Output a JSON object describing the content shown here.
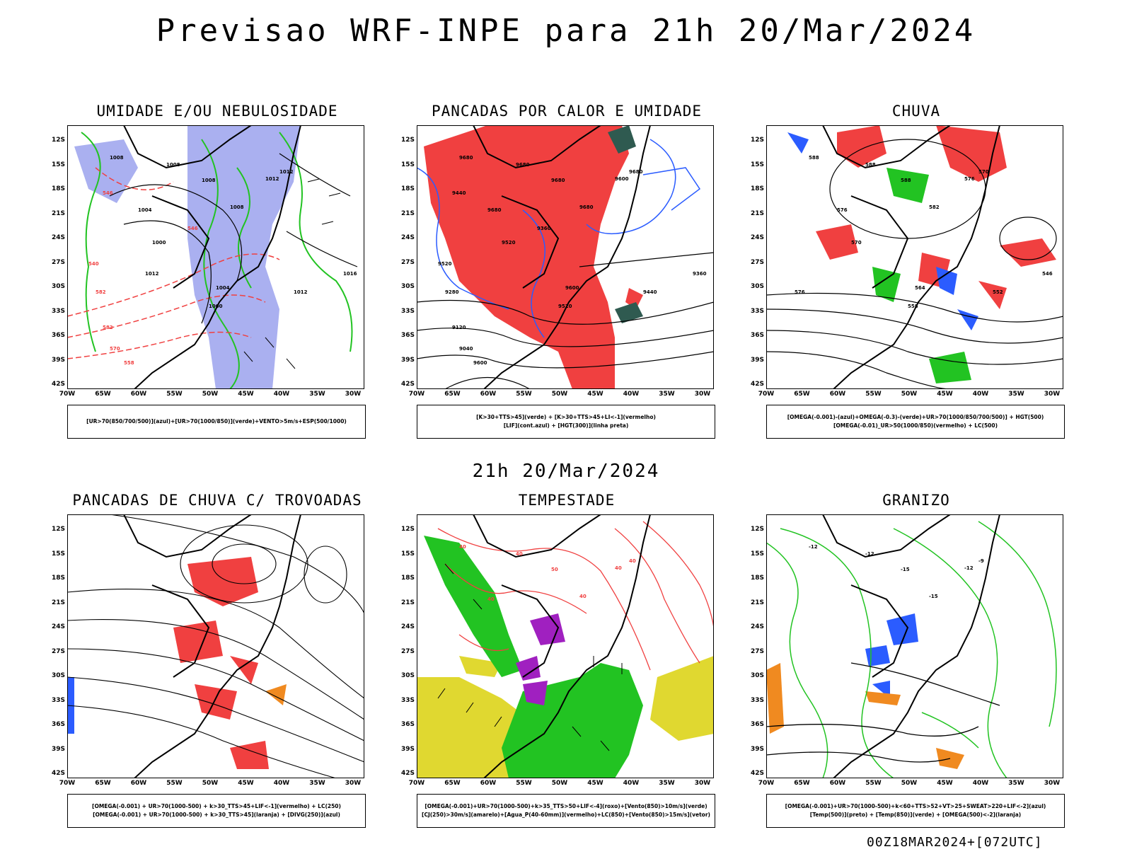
{
  "main_title": "Previsao WRF-INPE  para 21h 20/Mar/2024",
  "mid_title": "21h 20/Mar/2024",
  "footer": "00Z18MAR2024+[072UTC]",
  "axes": {
    "y_labels": [
      "12S",
      "15S",
      "18S",
      "21S",
      "24S",
      "27S",
      "30S",
      "33S",
      "36S",
      "39S",
      "42S"
    ],
    "x_labels": [
      "70W",
      "65W",
      "60W",
      "55W",
      "50W",
      "45W",
      "40W",
      "35W",
      "30W"
    ]
  },
  "colors": {
    "blue": "#2b5cff",
    "green": "#22c322",
    "red": "#f04040",
    "lavender": "#aab0f0",
    "yellow": "#e0d830",
    "orange": "#f08a20",
    "purple": "#a020c0",
    "darkgreen": "#2f5a50"
  },
  "panels": [
    {
      "title": "UMIDADE E/OU NEBULOSIDADE",
      "legend": [
        "[UR>70(850/700/500)](azul)+[UR>70(1000/850)](verde)+VENTO>5m/s+ESP(500/1000)"
      ],
      "labels": [
        "1008",
        "1008",
        "1008",
        "1008",
        "1012",
        "1012",
        "1004",
        "1000",
        "1004",
        "1000",
        "1012",
        "1016",
        "582",
        "582",
        "570",
        "558",
        "540",
        "546",
        "546",
        "1012"
      ]
    },
    {
      "title": "PANCADAS POR CALOR E UMIDADE",
      "legend": [
        "[K>30+TTS>45](verde) + [K>30+TTS>45+LI<-1](vermelho)",
        "[LIF](cont.azul) + [HGT(300)](linha preta)"
      ],
      "labels": [
        "9680",
        "9680",
        "9680",
        "9680",
        "9600",
        "9680",
        "9680",
        "9520",
        "9600",
        "9520",
        "9440",
        "9360",
        "9280",
        "9120",
        "9040",
        "9600",
        "9520",
        "9440",
        "9360"
      ]
    },
    {
      "title": "CHUVA",
      "legend": [
        "[OMEGA(-0.001)-(azul)+OMEGA(-0.3)-(verde)+UR>70(1000/850/700/500)] + HGT(500)",
        "[OMEGA(-0.01)_UR>50(1000/850)(vermelho) + LC(500)"
      ],
      "labels": [
        "588",
        "588",
        "588",
        "582",
        "576",
        "570",
        "576",
        "570",
        "564",
        "558",
        "552",
        "546",
        "576"
      ]
    },
    {
      "title": "PANCADAS DE CHUVA C/ TROVOADAS",
      "legend": [
        "[OMEGA(-0.001) + UR>70(1000-500) + k>30_TTS>45+LIF<-1](vermelho) + LC(250)",
        "[OMEGA(-0.001) + UR>70(1000-500) + k>30_TTS>45](laranja) + [DIVG(250)](azul)"
      ],
      "labels": []
    },
    {
      "title": "TEMPESTADE",
      "legend": [
        "[OMEGA(-0.001)+UR>70(1000-500)+k>35_TTS>50+LIF<-4](roxo)+[Vento(850)>10m/s](verde)",
        "[CJ(250)>30m/s](amarelo)+[Agua_P(40-60mm)](vermelho)+LC(850)+[Vento(850)>15m/s](vetor)"
      ],
      "labels": [
        "40",
        "40",
        "50",
        "40",
        "40",
        "40",
        "40"
      ]
    },
    {
      "title": "GRANIZO",
      "legend": [
        "[OMEGA(-0.001)+UR>70(1000-500)+k<60+TTS>52+VT>25+SWEAT>220+LIF<-2](azul)",
        "[Temp(500)](preto) + [Temp(850)](verde) + [OMEGA(500)<-2](laranja)"
      ],
      "labels": [
        "-12",
        "-12",
        "-15",
        "-15",
        "-12",
        "-9"
      ]
    }
  ]
}
